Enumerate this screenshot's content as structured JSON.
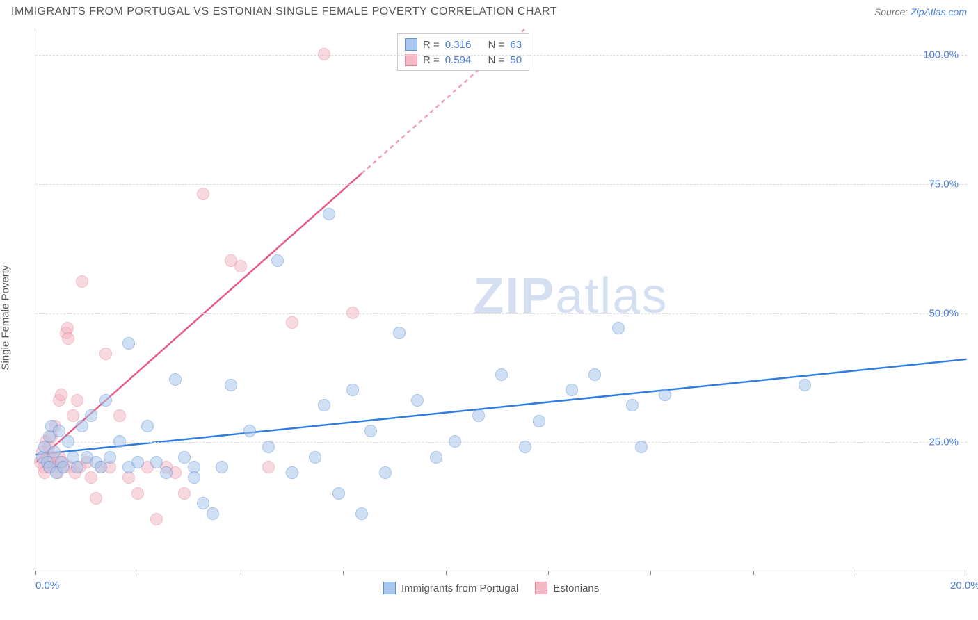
{
  "header": {
    "title": "IMMIGRANTS FROM PORTUGAL VS ESTONIAN SINGLE FEMALE POVERTY CORRELATION CHART",
    "source_label": "Source:",
    "source_name": "ZipAtlas.com"
  },
  "chart": {
    "type": "scatter",
    "ylabel": "Single Female Poverty",
    "xlim": [
      0,
      20
    ],
    "ylim": [
      0,
      105
    ],
    "xtick_positions": [
      0,
      2.2,
      4.4,
      6.6,
      8.8,
      11.0,
      13.2,
      15.4,
      17.6,
      20.0
    ],
    "xtick_labels_shown": {
      "0": "0.0%",
      "20": "20.0%"
    },
    "ytick_positions": [
      25,
      50,
      75,
      100
    ],
    "ytick_labels": [
      "25.0%",
      "50.0%",
      "75.0%",
      "100.0%"
    ],
    "grid_color": "#dddddd",
    "axis_color": "#bbbbbb",
    "tick_label_color": "#4a7fd8",
    "background_color": "#ffffff",
    "point_radius": 9,
    "point_opacity": 0.55,
    "watermark": "ZIPatlas",
    "series": [
      {
        "name": "Immigrants from Portugal",
        "color_fill": "#a9c7ec",
        "color_stroke": "#5b93d6",
        "r_label": "R =",
        "r_value": "0.316",
        "n_label": "N =",
        "n_value": "63",
        "regression": {
          "x1": 0,
          "y1": 22.5,
          "x2": 20,
          "y2": 41,
          "dash_from_x": null,
          "color": "#2f7de0",
          "width": 2.5
        },
        "points": [
          [
            0.15,
            22
          ],
          [
            0.2,
            24
          ],
          [
            0.25,
            21
          ],
          [
            0.3,
            26
          ],
          [
            0.3,
            20
          ],
          [
            0.35,
            28
          ],
          [
            0.4,
            23
          ],
          [
            0.45,
            19
          ],
          [
            0.5,
            27
          ],
          [
            0.55,
            21
          ],
          [
            0.6,
            20
          ],
          [
            0.7,
            25
          ],
          [
            0.8,
            22
          ],
          [
            0.9,
            20
          ],
          [
            1.0,
            28
          ],
          [
            1.1,
            22
          ],
          [
            1.2,
            30
          ],
          [
            1.3,
            21
          ],
          [
            1.4,
            20
          ],
          [
            1.5,
            33
          ],
          [
            1.6,
            22
          ],
          [
            1.8,
            25
          ],
          [
            2.0,
            20
          ],
          [
            2.0,
            44
          ],
          [
            2.2,
            21
          ],
          [
            2.4,
            28
          ],
          [
            2.6,
            21
          ],
          [
            2.8,
            19
          ],
          [
            3.0,
            37
          ],
          [
            3.2,
            22
          ],
          [
            3.4,
            20
          ],
          [
            3.4,
            18
          ],
          [
            3.6,
            13
          ],
          [
            3.8,
            11
          ],
          [
            4.0,
            20
          ],
          [
            4.2,
            36
          ],
          [
            4.6,
            27
          ],
          [
            5.0,
            24
          ],
          [
            5.2,
            60
          ],
          [
            5.5,
            19
          ],
          [
            6.0,
            22
          ],
          [
            6.2,
            32
          ],
          [
            6.3,
            69
          ],
          [
            6.5,
            15
          ],
          [
            6.8,
            35
          ],
          [
            7.0,
            11
          ],
          [
            7.2,
            27
          ],
          [
            7.5,
            19
          ],
          [
            7.8,
            46
          ],
          [
            8.2,
            33
          ],
          [
            8.6,
            22
          ],
          [
            9.0,
            25
          ],
          [
            9.5,
            30
          ],
          [
            10.0,
            38
          ],
          [
            10.5,
            24
          ],
          [
            10.8,
            29
          ],
          [
            11.5,
            35
          ],
          [
            12.0,
            38
          ],
          [
            12.5,
            47
          ],
          [
            13.0,
            24
          ],
          [
            13.5,
            34
          ],
          [
            16.5,
            36
          ],
          [
            12.8,
            32
          ]
        ]
      },
      {
        "name": "Estonians",
        "color_fill": "#f4b9c6",
        "color_stroke": "#e886a0",
        "r_label": "R =",
        "r_value": "0.594",
        "n_label": "N =",
        "n_value": "50",
        "regression": {
          "x1": 0,
          "y1": 21,
          "x2": 10.5,
          "y2": 105,
          "dash_from_x": 7.0,
          "color": "#e65a85",
          "width": 2.5
        },
        "points": [
          [
            0.1,
            21
          ],
          [
            0.15,
            23
          ],
          [
            0.18,
            20
          ],
          [
            0.2,
            19
          ],
          [
            0.22,
            25
          ],
          [
            0.25,
            22
          ],
          [
            0.28,
            24
          ],
          [
            0.3,
            20
          ],
          [
            0.32,
            21
          ],
          [
            0.35,
            26
          ],
          [
            0.38,
            22
          ],
          [
            0.4,
            20
          ],
          [
            0.42,
            28
          ],
          [
            0.45,
            21
          ],
          [
            0.48,
            19
          ],
          [
            0.5,
            33
          ],
          [
            0.52,
            22
          ],
          [
            0.55,
            34
          ],
          [
            0.58,
            21
          ],
          [
            0.6,
            20
          ],
          [
            0.65,
            46
          ],
          [
            0.68,
            47
          ],
          [
            0.7,
            45
          ],
          [
            0.75,
            20
          ],
          [
            0.8,
            30
          ],
          [
            0.85,
            19
          ],
          [
            0.9,
            33
          ],
          [
            0.95,
            20
          ],
          [
            1.0,
            56
          ],
          [
            1.1,
            21
          ],
          [
            1.2,
            18
          ],
          [
            1.3,
            14
          ],
          [
            1.4,
            20
          ],
          [
            1.5,
            42
          ],
          [
            1.6,
            20
          ],
          [
            1.8,
            30
          ],
          [
            2.0,
            18
          ],
          [
            2.2,
            15
          ],
          [
            2.4,
            20
          ],
          [
            2.6,
            10
          ],
          [
            2.8,
            20
          ],
          [
            3.0,
            19
          ],
          [
            3.2,
            15
          ],
          [
            3.6,
            73
          ],
          [
            4.2,
            60
          ],
          [
            4.4,
            59
          ],
          [
            5.5,
            48
          ],
          [
            6.2,
            100
          ],
          [
            6.8,
            50
          ],
          [
            5.0,
            20
          ]
        ]
      }
    ]
  }
}
